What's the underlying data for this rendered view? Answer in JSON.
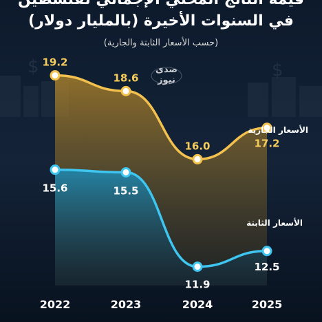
{
  "header": {
    "title_line1": "قيمة الناتج المحلي الإجمالي لفلسطين",
    "title_line2": "في السنوات الأخيرة (بالمليار دولار)",
    "subtitle": "(حسب الأسعار الثابتة والجارية)"
  },
  "logo_text": "صدى نيوز",
  "colors": {
    "background": "#0a1626",
    "current_line": "#f2c14e",
    "constant_line": "#3ec6f0",
    "current_label": "#f5cc5c",
    "constant_label": "#ffffff"
  },
  "chart_data": {
    "type": "line",
    "title": "قيمة الناتج المحلي الإجمالي لفلسطين في السنوات الأخيرة (بالمليار دولار)",
    "subtitle": "(حسب الأسعار الثابتة والجارية)",
    "x": [
      "2022",
      "2023",
      "2024",
      "2025"
    ],
    "ylim": [
      10,
      20.5
    ],
    "grid": false,
    "legend": "inline labels right",
    "series": [
      {
        "name": "الأسعار الجارية",
        "values": [
          19.2,
          18.6,
          16.0,
          17.2
        ],
        "labels": [
          "19.2",
          "18.6",
          "16.0",
          "17.2"
        ]
      },
      {
        "name": "الأسعار الثابتة",
        "values": [
          15.6,
          15.5,
          11.9,
          12.5
        ],
        "labels": [
          "15.6",
          "15.5",
          "11.9",
          "12.5"
        ]
      }
    ]
  }
}
